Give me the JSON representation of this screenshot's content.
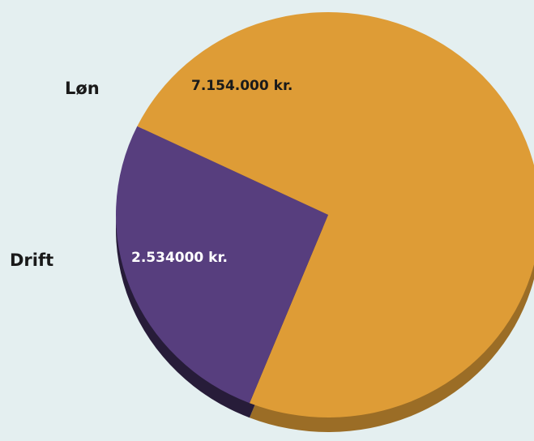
{
  "chart_data": {
    "type": "pie",
    "categories": [
      "Løn",
      "Drift"
    ],
    "values": [
      7154000,
      2534000
    ],
    "value_labels": [
      "7.154.000 kr.",
      "2.534000 kr."
    ],
    "colors": [
      "#de9c36",
      "#573e7e"
    ]
  }
}
